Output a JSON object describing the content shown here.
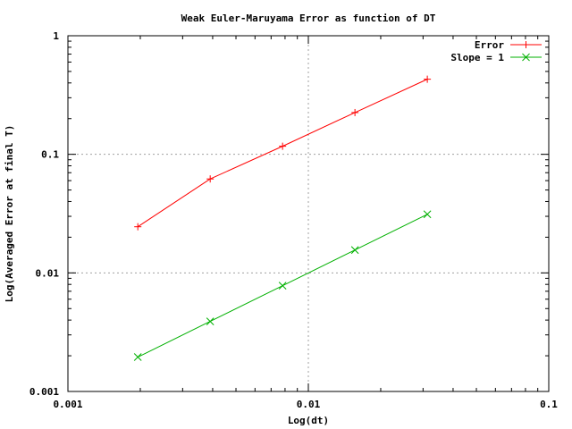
{
  "chart_data": {
    "type": "line",
    "title": "Weak Euler-Maruyama Error as function of DT",
    "xlabel": "Log(dt)",
    "ylabel": "Log(Averaged Error at final T)",
    "xscale": "log",
    "yscale": "log",
    "xlim": [
      0.001,
      0.1
    ],
    "ylim": [
      0.001,
      1
    ],
    "xticks": [
      {
        "value": 0.001,
        "label": "0.001"
      },
      {
        "value": 0.01,
        "label": "0.01"
      },
      {
        "value": 0.1,
        "label": "0.1"
      }
    ],
    "yticks": [
      {
        "value": 0.001,
        "label": "0.001"
      },
      {
        "value": 0.01,
        "label": "0.01"
      },
      {
        "value": 0.1,
        "label": "0.1"
      },
      {
        "value": 1,
        "label": "1"
      }
    ],
    "grid": true,
    "legend_position": "top-right",
    "series": [
      {
        "name": "Error",
        "color": "#ff0000",
        "marker": "plus",
        "x": [
          0.001953,
          0.003906,
          0.0078125,
          0.015625,
          0.03125
        ],
        "y": [
          0.0245,
          0.062,
          0.117,
          0.225,
          0.43
        ]
      },
      {
        "name": "Slope = 1",
        "color": "#00b000",
        "marker": "cross",
        "x": [
          0.001953,
          0.003906,
          0.0078125,
          0.015625,
          0.03125
        ],
        "y": [
          0.00195,
          0.0039,
          0.0078,
          0.0156,
          0.0312
        ]
      }
    ]
  }
}
